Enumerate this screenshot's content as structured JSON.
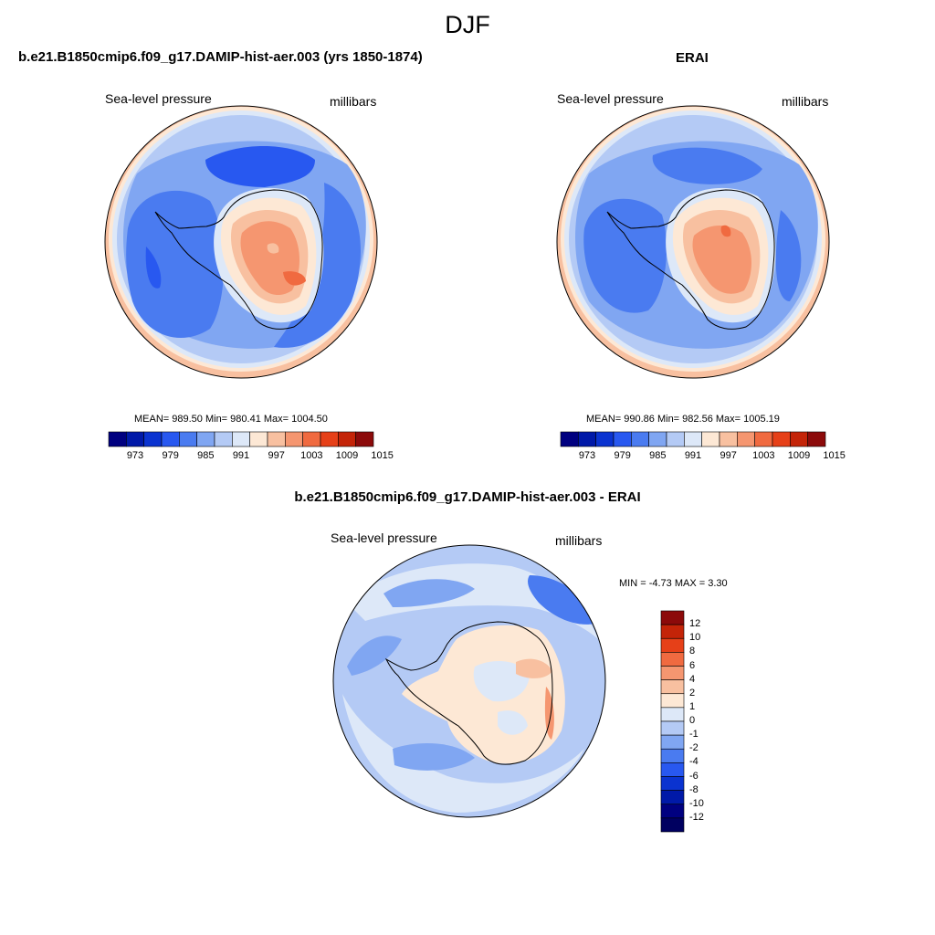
{
  "figure": {
    "title": "DJF"
  },
  "panels": [
    {
      "id": "model",
      "title": "b.e21.B1850cmip6.f09_g17.DAMIP-hist-aer.003 (yrs 1850-1874)",
      "variable_label": "Sea-level pressure",
      "units_label": "millibars",
      "stats_text": "MEAN= 989.50  Min= 980.41  Max= 1004.50",
      "stats": {
        "mean": 989.5,
        "min": 980.41,
        "max": 1004.5
      }
    },
    {
      "id": "obs",
      "title": "ERAI",
      "variable_label": "Sea-level pressure",
      "units_label": "millibars",
      "stats_text": "MEAN= 990.86  Min= 982.56  Max= 1005.19",
      "stats": {
        "mean": 990.86,
        "min": 982.56,
        "max": 1005.19
      }
    },
    {
      "id": "diff",
      "title": "b.e21.B1850cmip6.f09_g17.DAMIP-hist-aer.003 - ERAI",
      "variable_label": "Sea-level pressure",
      "units_label": "millibars",
      "stats_text": "MIN =  -4.73 MAX =   3.30",
      "stats": {
        "min": -4.73,
        "max": 3.3
      }
    }
  ],
  "colorbar_abs": {
    "tick_labels": [
      "973",
      "979",
      "985",
      "991",
      "997",
      "1003",
      "1009",
      "1015"
    ],
    "colors": [
      "#000080",
      "#0019a8",
      "#0a33d0",
      "#2858f0",
      "#4a7bf0",
      "#80a6f2",
      "#b4caf5",
      "#dde8f8",
      "#fde8d5",
      "#f8c0a0",
      "#f59670",
      "#f06a40",
      "#e64018",
      "#c42408",
      "#8c0a0a"
    ]
  },
  "colorbar_diff": {
    "tick_labels": [
      "12",
      "10",
      "8",
      "6",
      "4",
      "2",
      "1",
      "0",
      "-1",
      "-2",
      "-4",
      "-6",
      "-8",
      "-10",
      "-12"
    ],
    "colors": [
      "#8c0a0a",
      "#c42408",
      "#e64018",
      "#f06a40",
      "#f59670",
      "#f8c0a0",
      "#fde8d5",
      "#dde8f8",
      "#b4caf5",
      "#80a6f2",
      "#4a7bf0",
      "#2858f0",
      "#0a33d0",
      "#0019a8",
      "#000080",
      "#000060"
    ]
  }
}
